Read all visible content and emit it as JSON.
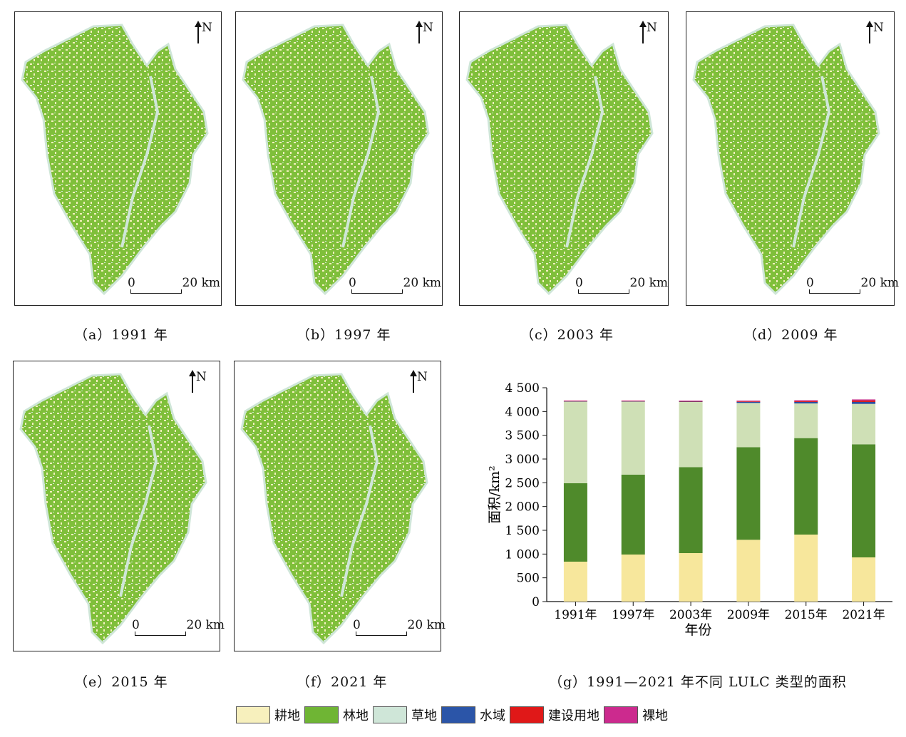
{
  "panels": [
    {
      "caption": "（a）1991 年",
      "north": "N",
      "scale_zero": "0",
      "scale_dist": "20 km"
    },
    {
      "caption": "（b）1997 年",
      "north": "N",
      "scale_zero": "0",
      "scale_dist": "20 km"
    },
    {
      "caption": "（c）2003 年",
      "north": "N",
      "scale_zero": "0",
      "scale_dist": "20 km"
    },
    {
      "caption": "（d）2009 年",
      "north": "N",
      "scale_zero": "0",
      "scale_dist": "20 km"
    },
    {
      "caption": "（e）2015 年",
      "north": "N",
      "scale_zero": "0",
      "scale_dist": "20 km"
    },
    {
      "caption": "（f）2021 年",
      "north": "N",
      "scale_zero": "0",
      "scale_dist": "20 km"
    }
  ],
  "chart_caption": "（g）1991—2021 年不同 LULC 类型的面积",
  "legend": [
    {
      "label": "耕地",
      "color": "#f7f0bd"
    },
    {
      "label": "林地",
      "color": "#6fb534"
    },
    {
      "label": "草地",
      "color": "#cfe6d8"
    },
    {
      "label": "水域",
      "color": "#2b55a8"
    },
    {
      "label": "建设用地",
      "color": "#e01818"
    },
    {
      "label": "裸地",
      "color": "#cc2a8e"
    }
  ],
  "chart_data": {
    "type": "bar",
    "stacked": true,
    "categories": [
      "1991年",
      "1997年",
      "2003年",
      "2009年",
      "2015年",
      "2021年"
    ],
    "xlabel": "年份",
    "ylabel": "面积/km²",
    "ylim": [
      0,
      4500
    ],
    "yticks": [
      "0",
      "500",
      "1 000",
      "1 500",
      "2 000",
      "2 500",
      "3 000",
      "3 500",
      "4 000",
      "4 500"
    ],
    "ytick_values": [
      0,
      500,
      1000,
      1500,
      2000,
      2500,
      3000,
      3500,
      4000,
      4500
    ],
    "series": [
      {
        "name": "耕地",
        "color": "#f7e79c",
        "values": [
          840,
          990,
          1020,
          1300,
          1410,
          930
        ]
      },
      {
        "name": "林地",
        "color": "#4f8a2b",
        "values": [
          1650,
          1680,
          1810,
          1950,
          2030,
          2380
        ]
      },
      {
        "name": "草地",
        "color": "#cfe0b6",
        "values": [
          1720,
          1540,
          1370,
          930,
          730,
          850
        ]
      },
      {
        "name": "水域",
        "color": "#2b4ca0",
        "values": [
          5,
          5,
          8,
          22,
          30,
          40
        ]
      },
      {
        "name": "建设用地",
        "color": "#d62222",
        "values": [
          5,
          5,
          8,
          12,
          18,
          30
        ]
      },
      {
        "name": "裸地",
        "color": "#c9338f",
        "values": [
          12,
          12,
          14,
          16,
          20,
          24
        ]
      }
    ]
  }
}
